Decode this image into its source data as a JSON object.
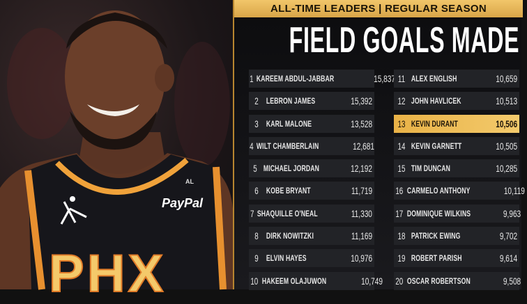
{
  "header": {
    "subtitle": "ALL-TIME LEADERS | REGULAR SEASON",
    "title": "FIELD GOALS MADE"
  },
  "photo": {
    "jersey_text": "PHX",
    "sponsor": "PayPal",
    "patch": "AL"
  },
  "colors": {
    "gold": "#e9b247",
    "highlight": "#f3ca6c",
    "panel": "#0c0c0e"
  },
  "leaders_left": [
    {
      "rank": "1",
      "name": "KAREEM ABDUL-JABBAR",
      "fgm": "15,837"
    },
    {
      "rank": "2",
      "name": "LEBRON JAMES",
      "fgm": "15,392"
    },
    {
      "rank": "3",
      "name": "KARL MALONE",
      "fgm": "13,528"
    },
    {
      "rank": "4",
      "name": "WILT CHAMBERLAIN",
      "fgm": "12,681"
    },
    {
      "rank": "5",
      "name": "MICHAEL JORDAN",
      "fgm": "12,192"
    },
    {
      "rank": "6",
      "name": "KOBE BRYANT",
      "fgm": "11,719"
    },
    {
      "rank": "7",
      "name": "SHAQUILLE O'NEAL",
      "fgm": "11,330"
    },
    {
      "rank": "8",
      "name": "DIRK NOWITZKI",
      "fgm": "11,169"
    },
    {
      "rank": "9",
      "name": "ELVIN HAYES",
      "fgm": "10,976"
    },
    {
      "rank": "10",
      "name": "HAKEEM OLAJUWON",
      "fgm": "10,749"
    }
  ],
  "leaders_right": [
    {
      "rank": "11",
      "name": "ALEX ENGLISH",
      "fgm": "10,659"
    },
    {
      "rank": "12",
      "name": "JOHN HAVLICEK",
      "fgm": "10,513"
    },
    {
      "rank": "13",
      "name": "KEVIN DURANT",
      "fgm": "10,506",
      "highlighted": true
    },
    {
      "rank": "14",
      "name": "KEVIN GARNETT",
      "fgm": "10,505"
    },
    {
      "rank": "15",
      "name": "TIM DUNCAN",
      "fgm": "10,285"
    },
    {
      "rank": "16",
      "name": "CARMELO ANTHONY",
      "fgm": "10,119"
    },
    {
      "rank": "17",
      "name": "DOMINIQUE WILKINS",
      "fgm": "9,963"
    },
    {
      "rank": "18",
      "name": "PATRICK EWING",
      "fgm": "9,702"
    },
    {
      "rank": "19",
      "name": "ROBERT PARISH",
      "fgm": "9,614"
    },
    {
      "rank": "20",
      "name": "OSCAR ROBERTSON",
      "fgm": "9,508"
    }
  ]
}
